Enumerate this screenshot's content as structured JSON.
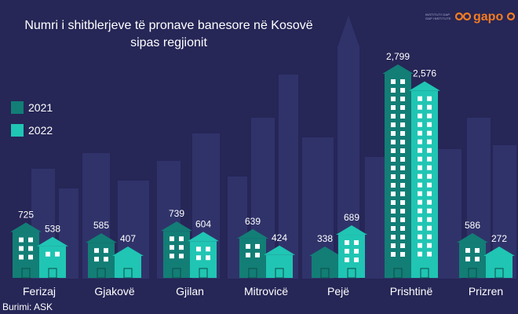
{
  "title_line1": "Numri i shitblerjeve të pronave banesore në Kosovë",
  "title_line2": "sipas regjionit",
  "source": "Burimi: ASK",
  "logo": {
    "name": "gapo",
    "small_text_line1": "INSTITUTI GAP",
    "small_text_line2": "GAP INSTITUTE",
    "color": "#f47b20"
  },
  "colors": {
    "background": "#262657",
    "skyline": "#30336a",
    "series_2021": "#127e76",
    "series_2022": "#20c5b3",
    "window": "#ffffff",
    "text": "#ffffff"
  },
  "chart_data": {
    "type": "bar",
    "categories": [
      "Ferizaj",
      "Gjakovë",
      "Gjilan",
      "Mitrovicë",
      "Pejë",
      "Prishtinë",
      "Prizren"
    ],
    "series": [
      {
        "name": "2021",
        "values": [
          725,
          585,
          739,
          639,
          338,
          2799,
          586
        ],
        "labels": [
          "725",
          "585",
          "739",
          "639",
          "338",
          "2,799",
          "586"
        ]
      },
      {
        "name": "2022",
        "values": [
          538,
          407,
          604,
          424,
          689,
          2576,
          272
        ],
        "labels": [
          "538",
          "407",
          "604",
          "424",
          "689",
          "2,576",
          "272"
        ]
      }
    ],
    "ylim": [
      0,
      2799
    ],
    "legend_position": "left"
  }
}
